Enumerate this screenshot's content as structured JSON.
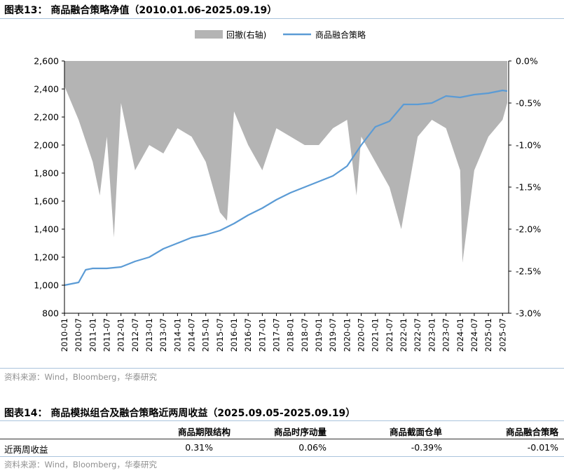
{
  "figure13": {
    "title": "图表13： 商品融合策略净值（2010.01.06-2025.09.19）",
    "source": "资料来源：Wind，Bloomberg，华泰研究"
  },
  "chart_data": {
    "type": "line",
    "legend_position": "top-center",
    "grid": false,
    "x_tick_labels": [
      "2010-01",
      "2010-07",
      "2011-01",
      "2011-07",
      "2012-01",
      "2012-07",
      "2013-01",
      "2013-07",
      "2014-01",
      "2014-07",
      "2015-01",
      "2015-07",
      "2016-01",
      "2016-07",
      "2017-01",
      "2017-07",
      "2018-01",
      "2018-07",
      "2019-01",
      "2019-07",
      "2020-01",
      "2020-07",
      "2021-01",
      "2021-07",
      "2022-01",
      "2022-07",
      "2023-01",
      "2023-07",
      "2024-01",
      "2024-07",
      "2025-01",
      "2025-07"
    ],
    "y_left": {
      "ylim": [
        800,
        2600
      ],
      "ticks": [
        "800",
        "1,000",
        "1,200",
        "1,400",
        "1,600",
        "1,800",
        "2,000",
        "2,200",
        "2,400",
        "2,600"
      ]
    },
    "y_right": {
      "ylim": [
        -3.0,
        0.0
      ],
      "ticks": [
        "0.0%",
        "-0.5%",
        "-1.0%",
        "-1.5%",
        "-2.0%",
        "-2.5%",
        "-3.0%"
      ]
    },
    "series": [
      {
        "name": "回撤(右轴)",
        "type": "area",
        "axis": "right",
        "color": "#b4b4b4",
        "x": [
          "2010-01",
          "2010-07",
          "2011-01",
          "2011-04",
          "2011-07",
          "2011-10",
          "2012-01",
          "2012-07",
          "2013-01",
          "2013-07",
          "2014-01",
          "2014-07",
          "2015-01",
          "2015-07",
          "2015-10",
          "2016-01",
          "2016-07",
          "2017-01",
          "2017-07",
          "2018-01",
          "2018-07",
          "2019-01",
          "2019-07",
          "2020-01",
          "2020-05",
          "2020-07",
          "2021-01",
          "2021-07",
          "2021-12",
          "2022-07",
          "2023-01",
          "2023-07",
          "2024-01",
          "2024-02",
          "2024-07",
          "2025-01",
          "2025-07",
          "2025-09"
        ],
        "values": [
          -0.3,
          -0.7,
          -1.2,
          -1.6,
          -0.9,
          -2.1,
          -0.5,
          -1.3,
          -1.0,
          -1.1,
          -0.8,
          -0.9,
          -1.2,
          -1.8,
          -1.9,
          -0.6,
          -1.0,
          -1.3,
          -0.8,
          -0.9,
          -1.0,
          -1.0,
          -0.8,
          -0.7,
          -1.6,
          -0.9,
          -1.2,
          -1.5,
          -2.0,
          -0.9,
          -0.7,
          -0.8,
          -1.3,
          -2.4,
          -1.3,
          -0.9,
          -0.7,
          -0.5
        ]
      },
      {
        "name": "商品融合策略",
        "type": "line",
        "axis": "left",
        "color": "#5b9bd5",
        "x": [
          "2010-01",
          "2010-07",
          "2010-10",
          "2011-01",
          "2011-07",
          "2012-01",
          "2012-07",
          "2013-01",
          "2013-07",
          "2014-01",
          "2014-07",
          "2015-01",
          "2015-07",
          "2016-01",
          "2016-07",
          "2017-01",
          "2017-07",
          "2018-01",
          "2018-07",
          "2019-01",
          "2019-07",
          "2020-01",
          "2020-07",
          "2021-01",
          "2021-07",
          "2022-01",
          "2022-07",
          "2023-01",
          "2023-07",
          "2024-01",
          "2024-07",
          "2025-01",
          "2025-07",
          "2025-09"
        ],
        "values": [
          1000,
          1020,
          1110,
          1120,
          1120,
          1130,
          1170,
          1200,
          1260,
          1300,
          1340,
          1360,
          1390,
          1440,
          1500,
          1550,
          1610,
          1660,
          1700,
          1740,
          1780,
          1850,
          2000,
          2130,
          2170,
          2290,
          2290,
          2300,
          2350,
          2340,
          2360,
          2370,
          2390,
          2385
        ]
      }
    ]
  },
  "figure14": {
    "title": "图表14： 商品模拟组合及融合策略近两周收益（2025.09.05-2025.09.19）",
    "headers": [
      "商品期限结构",
      "商品时序动量",
      "商品截面仓单",
      "商品融合策略"
    ],
    "row_label": "近两周收益",
    "values": [
      "0.31%",
      "0.06%",
      "-0.39%",
      "-0.01%"
    ],
    "source": "资料来源：Wind，Bloomberg，华泰研究"
  }
}
